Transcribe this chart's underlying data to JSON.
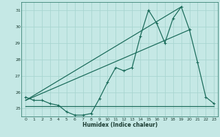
{
  "xlabel": "Humidex (Indice chaleur)",
  "bg_color": "#c5e8e5",
  "grid_color": "#a8d5d0",
  "line_color": "#1a6b5a",
  "x": [
    0,
    1,
    2,
    3,
    4,
    5,
    6,
    7,
    8,
    9,
    10,
    11,
    12,
    13,
    14,
    15,
    16,
    17,
    18,
    19,
    20,
    21,
    22,
    23
  ],
  "y_main": [
    25.7,
    25.5,
    25.5,
    25.3,
    25.2,
    24.8,
    24.6,
    24.6,
    24.7,
    25.6,
    26.6,
    27.5,
    27.3,
    27.5,
    29.4,
    31.0,
    30.2,
    29.0,
    30.5,
    31.2,
    29.8,
    27.8,
    25.7,
    25.3
  ],
  "y_flat": 25.15,
  "trend1_x": [
    0,
    20
  ],
  "trend1_y": [
    25.5,
    29.8
  ],
  "trend2_x": [
    0,
    19
  ],
  "trend2_y": [
    25.5,
    31.2
  ],
  "ylim": [
    24.5,
    31.5
  ],
  "xlim": [
    -0.5,
    23.5
  ],
  "yticks": [
    25,
    26,
    27,
    28,
    29,
    30,
    31
  ],
  "xticks": [
    0,
    1,
    2,
    3,
    4,
    5,
    6,
    7,
    8,
    9,
    10,
    11,
    12,
    13,
    14,
    15,
    16,
    17,
    18,
    19,
    20,
    21,
    22,
    23
  ],
  "marker_size": 2.5,
  "line_width": 0.9
}
